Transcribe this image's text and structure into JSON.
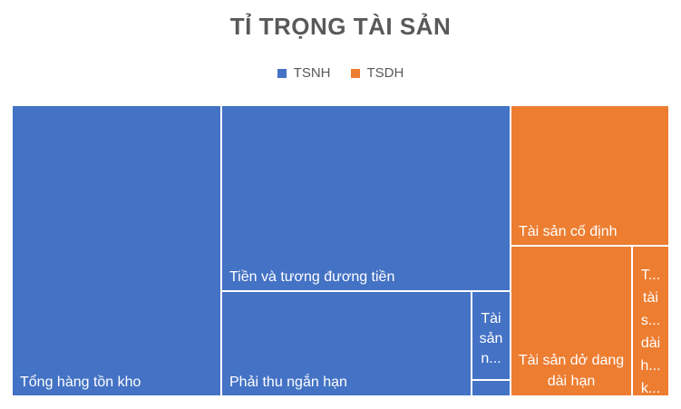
{
  "chart_data": {
    "type": "treemap",
    "title": "TỈ TRỌNG TÀI SẢN",
    "legend_position": "top",
    "series": [
      {
        "name": "TSNH",
        "color": "#4472C4"
      },
      {
        "name": "TSDH",
        "color": "#ED7D31"
      }
    ],
    "items": [
      {
        "label": "Tổng hàng tồn kho",
        "group": "TSNH",
        "value": 106.6
      },
      {
        "label": "Tiền và tương đương tiền",
        "group": "TSNH",
        "value": 92.7
      },
      {
        "label": "Phải thu ngắn hạn",
        "group": "TSNH",
        "value": 61.9
      },
      {
        "label": "Tài sản n...",
        "group": "TSNH",
        "value": 7.7
      },
      {
        "label": "",
        "group": "TSNH",
        "value": 2.0
      },
      {
        "label": "Tài sản cố định",
        "group": "TSDH",
        "value": 45.8
      },
      {
        "label": "Tài sản dở dang dài hạn",
        "group": "TSDH",
        "value": 38.9
      },
      {
        "label": "T... tài s... dài h... k...",
        "group": "TSDH",
        "value": 8.6
      }
    ]
  }
}
